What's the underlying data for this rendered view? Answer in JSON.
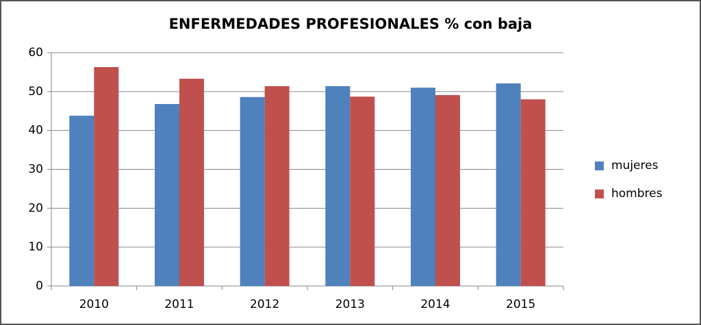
{
  "chart_data": {
    "type": "bar",
    "title": "ENFERMEDADES PROFESIONALES % con baja",
    "categories": [
      "2010",
      "2011",
      "2012",
      "2013",
      "2014",
      "2015"
    ],
    "series": [
      {
        "name": "mujeres",
        "color": "#4f81bd",
        "values": [
          43.8,
          46.8,
          48.6,
          51.4,
          51.0,
          52.1
        ]
      },
      {
        "name": "hombres",
        "color": "#c0504d",
        "values": [
          56.3,
          53.3,
          51.4,
          48.7,
          49.1,
          48.0
        ]
      }
    ],
    "ylim": [
      0,
      60
    ],
    "yticks": [
      0,
      10,
      20,
      30,
      40,
      50,
      60
    ],
    "grid": true,
    "legend": "right"
  }
}
